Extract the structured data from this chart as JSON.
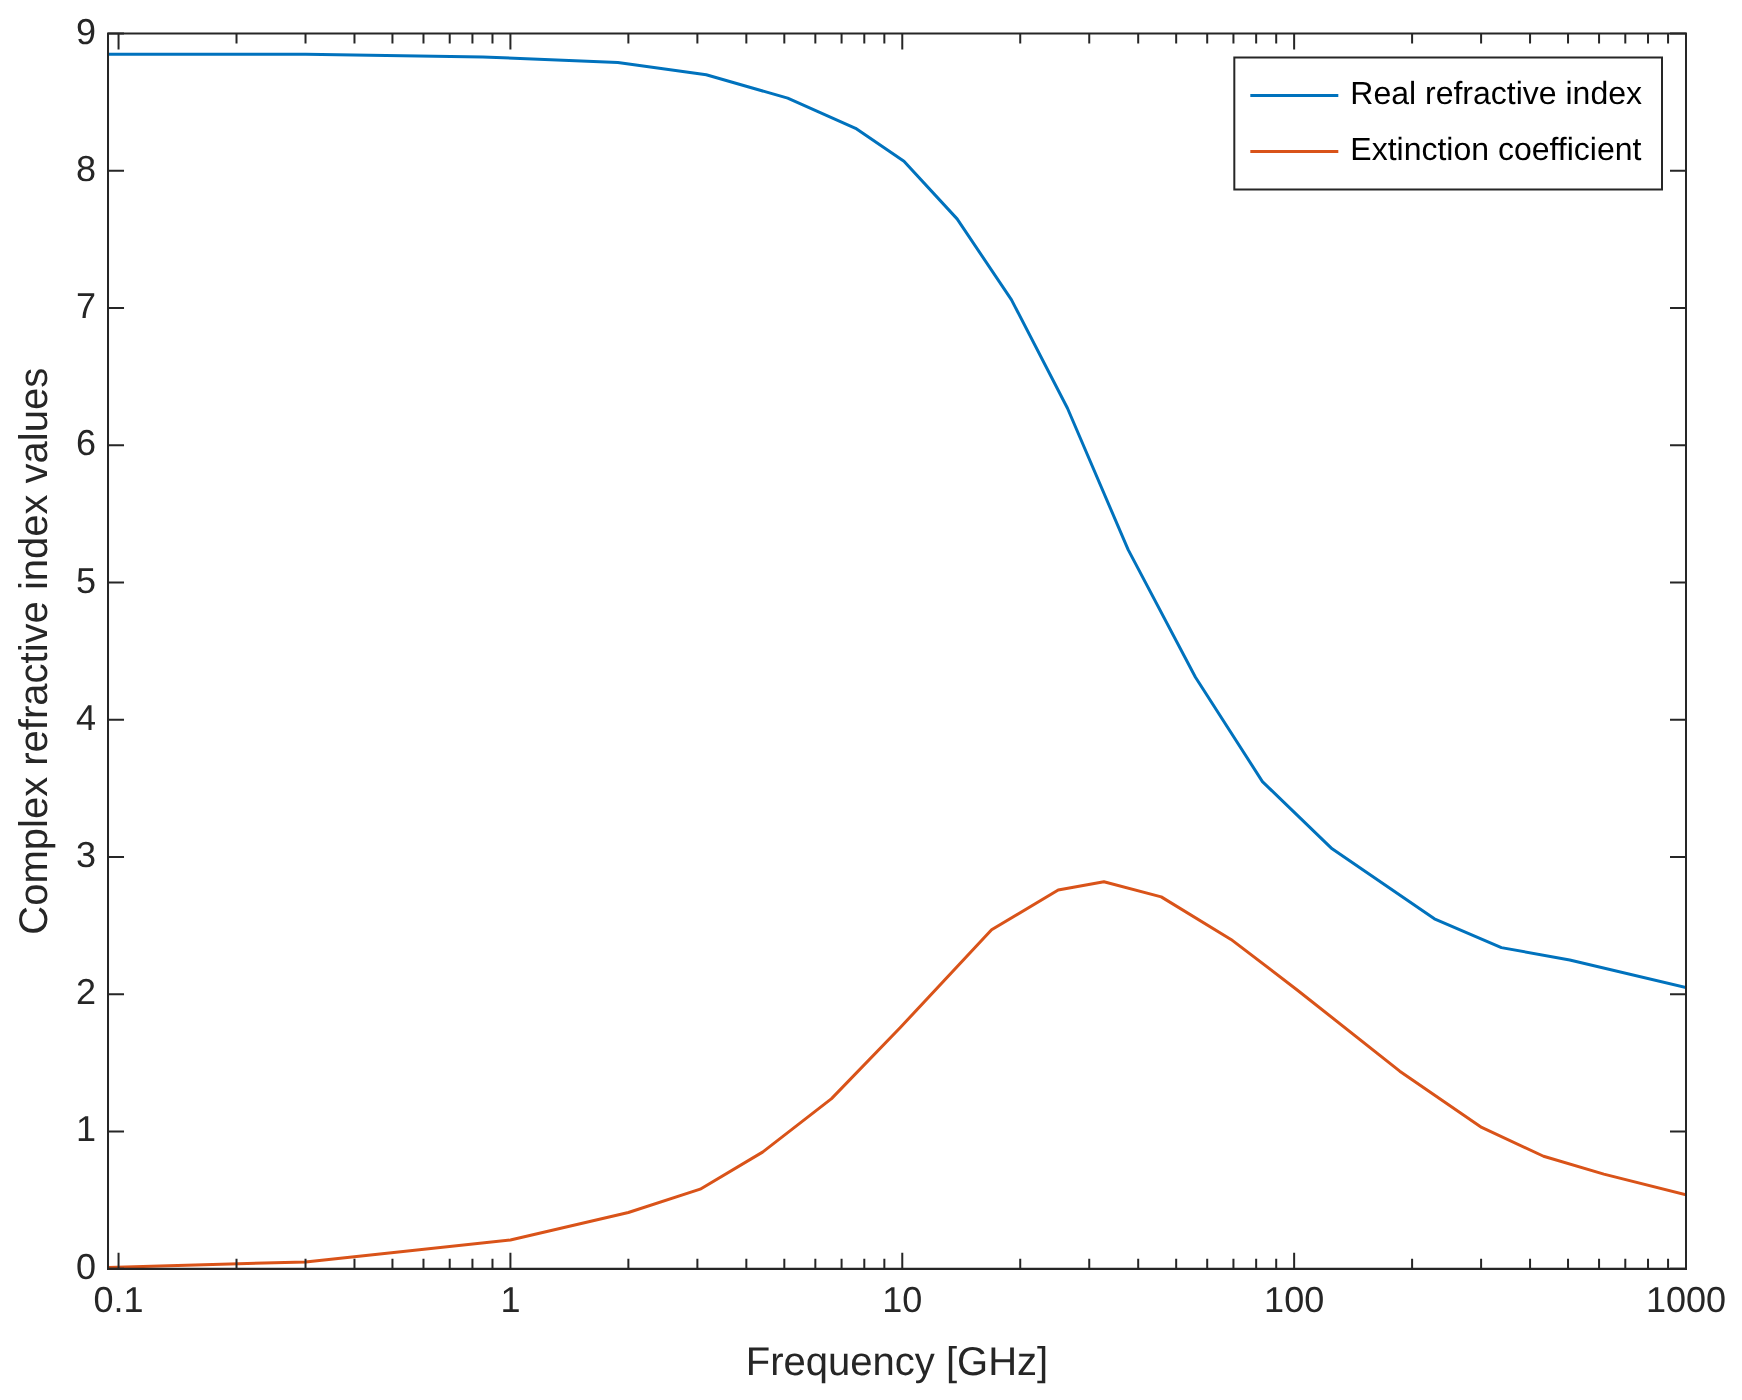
{
  "chart_data": {
    "type": "line",
    "xlabel": "Frequency [GHz]",
    "ylabel": "Complex refractive index values",
    "log": "x",
    "xlim": [
      0.094,
      1000
    ],
    "ylim": [
      0,
      9
    ],
    "xticks": [
      0.1,
      {
        "value": 0.2,
        "label": null
      },
      {
        "value": 0.3,
        "label": null
      },
      {
        "value": 0.4,
        "label": null
      },
      {
        "value": 0.5,
        "label": null
      },
      {
        "value": 0.6,
        "label": null
      },
      {
        "value": 0.7,
        "label": null
      },
      {
        "value": 0.8,
        "label": null
      },
      {
        "value": 0.9,
        "label": null
      },
      1,
      {
        "value": 2,
        "label": null
      },
      {
        "value": 3,
        "label": null
      },
      {
        "value": 4,
        "label": null
      },
      {
        "value": 5,
        "label": null
      },
      {
        "value": 6,
        "label": null
      },
      {
        "value": 7,
        "label": null
      },
      {
        "value": 8,
        "label": null
      },
      {
        "value": 9,
        "label": null
      },
      10,
      {
        "value": 20,
        "label": null
      },
      {
        "value": 30,
        "label": null
      },
      {
        "value": 40,
        "label": null
      },
      {
        "value": 50,
        "label": null
      },
      {
        "value": 60,
        "label": null
      },
      {
        "value": 70,
        "label": null
      },
      {
        "value": 80,
        "label": null
      },
      {
        "value": 90,
        "label": null
      },
      100,
      {
        "value": 200,
        "label": null
      },
      {
        "value": 300,
        "label": null
      },
      {
        "value": 400,
        "label": null
      },
      {
        "value": 500,
        "label": null
      },
      {
        "value": 600,
        "label": null
      },
      {
        "value": 700,
        "label": null
      },
      {
        "value": 800,
        "label": null
      },
      {
        "value": 900,
        "label": null
      },
      1000
    ],
    "yticks": [
      0,
      1,
      2,
      3,
      4,
      5,
      6,
      7,
      8,
      9
    ],
    "grid": false,
    "legend": "top right",
    "marker": "none",
    "line_style": "solid",
    "series": [
      {
        "name": "Real refractive index",
        "color": "#0072bd",
        "x": [
          0.094,
          0.3,
          0.85,
          1.88,
          3.16,
          5.1,
          7.6,
          10.1,
          13.8,
          19,
          26.4,
          37.7,
          56,
          83,
          125,
          228,
          338,
          505,
          1000
        ],
        "values": [
          8.85,
          8.85,
          8.83,
          8.79,
          8.7,
          8.53,
          8.31,
          8.07,
          7.65,
          7.06,
          6.27,
          5.24,
          4.31,
          3.55,
          3.06,
          2.55,
          2.34,
          2.25,
          2.05
        ]
      },
      {
        "name": "Extinction coefficient",
        "color": "#d95319",
        "x": [
          0.094,
          0.3,
          1,
          2,
          3.05,
          4.4,
          6.6,
          9.9,
          16.9,
          25,
          32.7,
          45.8,
          69,
          102,
          186,
          301,
          433,
          617,
          1000
        ],
        "values": [
          0.01,
          0.05,
          0.21,
          0.41,
          0.58,
          0.85,
          1.24,
          1.76,
          2.47,
          2.76,
          2.82,
          2.71,
          2.4,
          2.03,
          1.44,
          1.03,
          0.82,
          0.69,
          0.54
        ]
      }
    ]
  }
}
